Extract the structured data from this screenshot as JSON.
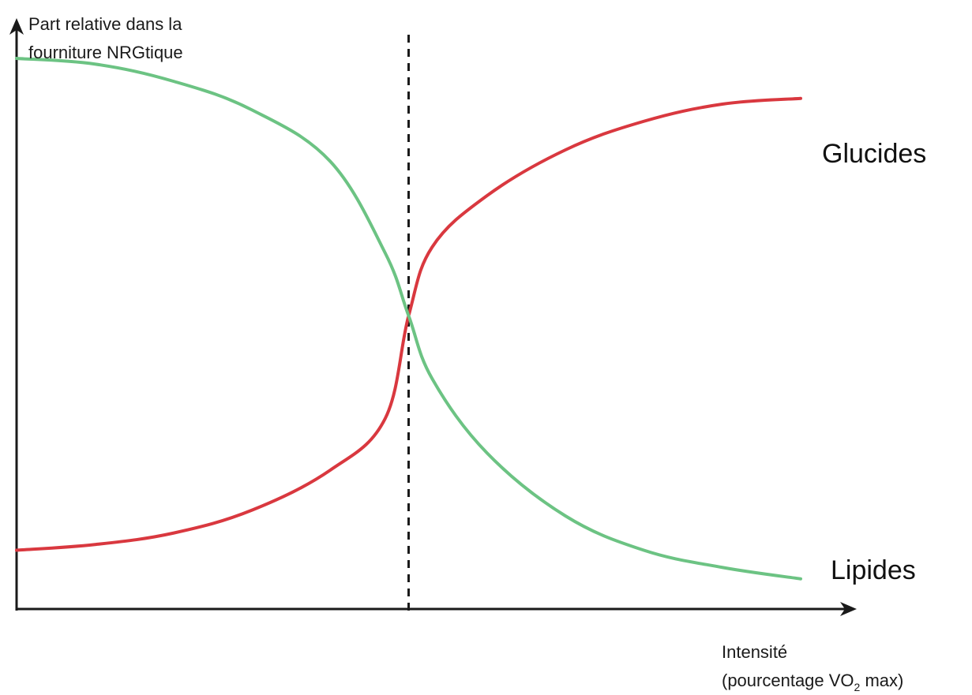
{
  "chart_data": {
    "type": "line",
    "title": "",
    "ylabel_lines": [
      "Part relative dans la",
      "fourniture NRGtique"
    ],
    "xlabel_line1": "Intensité",
    "xlabel_line2_prefix": "(pourcentage VO",
    "xlabel_line2_subscript": "2",
    "xlabel_line2_suffix": " max)",
    "x_ticks_shown": false,
    "y_ticks_shown": false,
    "grid": false,
    "crossover_marker": "dashed-vertical-line",
    "crossover_x": 0.5,
    "series": [
      {
        "name": "Glucides",
        "color": "#d9383f",
        "x": [
          0.0,
          0.1,
          0.2,
          0.3,
          0.4,
          0.47,
          0.5,
          0.53,
          0.6,
          0.7,
          0.8,
          0.9,
          1.0
        ],
        "y": [
          0.1,
          0.11,
          0.13,
          0.17,
          0.24,
          0.33,
          0.51,
          0.63,
          0.72,
          0.8,
          0.85,
          0.88,
          0.89
        ]
      },
      {
        "name": "Lipides",
        "color": "#6cc383",
        "x": [
          0.0,
          0.1,
          0.2,
          0.3,
          0.4,
          0.47,
          0.5,
          0.53,
          0.6,
          0.7,
          0.8,
          0.9,
          1.0
        ],
        "y": [
          0.96,
          0.95,
          0.92,
          0.87,
          0.78,
          0.62,
          0.51,
          0.4,
          0.27,
          0.16,
          0.1,
          0.07,
          0.05
        ]
      }
    ]
  }
}
